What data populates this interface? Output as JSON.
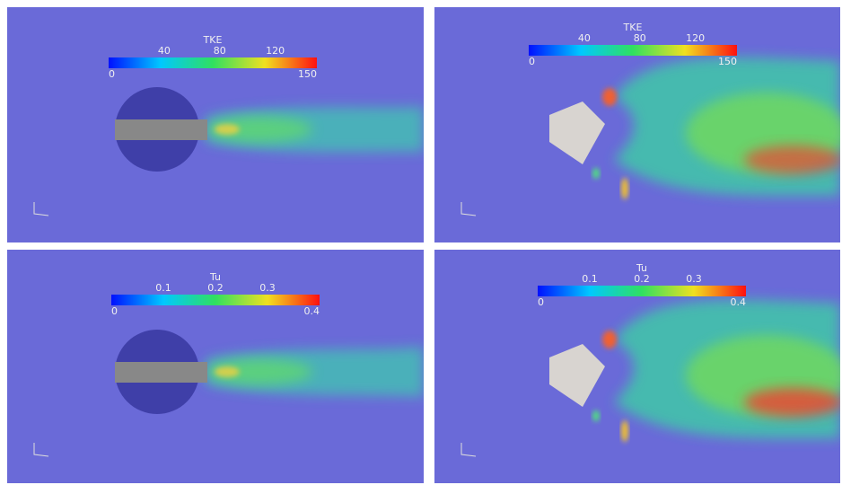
{
  "panels": [
    {
      "colorbar": {
        "title": "TKE",
        "min": 0,
        "max": 150,
        "ticks": [
          40,
          80,
          120
        ]
      }
    },
    {
      "colorbar": {
        "title": "TKE",
        "min": 0,
        "max": 150,
        "ticks": [
          40,
          80,
          120
        ]
      }
    },
    {
      "colorbar": {
        "title": "Tu",
        "min": 0,
        "max": 0.4,
        "ticks": [
          0.1,
          0.2,
          0.3
        ]
      }
    },
    {
      "colorbar": {
        "title": "Tu",
        "min": 0,
        "max": 0.4,
        "ticks": [
          0.1,
          0.2,
          0.3
        ]
      }
    }
  ]
}
